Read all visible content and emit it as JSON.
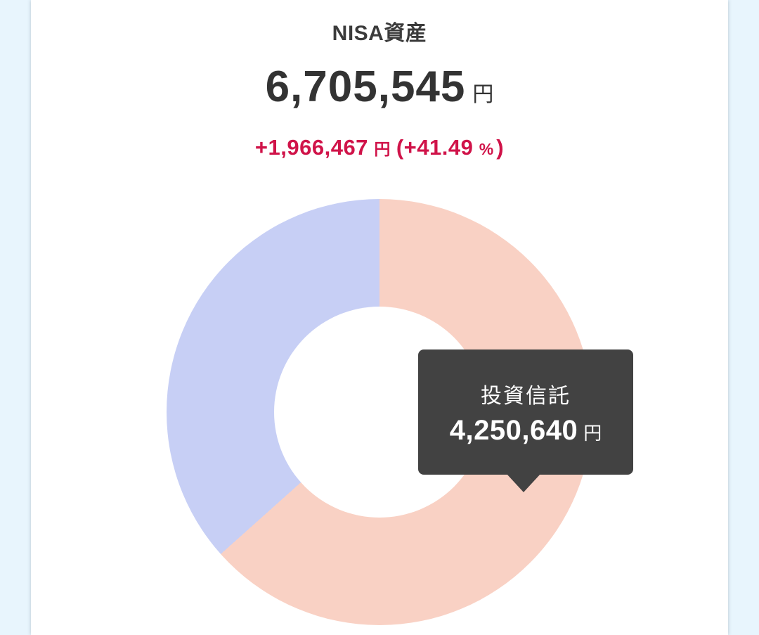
{
  "colors": {
    "page_bg": "#e8f5fd",
    "card_bg": "#ffffff",
    "title_text": "#3b3b3b",
    "amount_text": "#333333",
    "gain_text": "#d01349"
  },
  "header": {
    "title": "NISA資産",
    "total": {
      "amount": "6,705,545",
      "unit": "円"
    },
    "gain": {
      "amount": "+1,966,467",
      "currency_unit": "円",
      "percent_text": "(+41.49",
      "percent_unit": "%",
      "percent_close": ")",
      "color": "#d01349"
    }
  },
  "tooltip": {
    "label": "投資信託",
    "amount": "4,250,640",
    "unit": "円",
    "bg_color": "#424242",
    "text_color": "#ffffff"
  },
  "chart_data": {
    "type": "pie",
    "subtype": "donut",
    "title": "NISA資産",
    "total_value": 6705545,
    "unit": "円",
    "inner_radius_ratio": 0.5,
    "start_angle_deg": 0,
    "direction": "clockwise",
    "legend_position": "none",
    "segments": [
      {
        "label": "投資信託",
        "value": 4250640,
        "percent": 63.4,
        "color": "#f9d1c4"
      },
      {
        "label": "",
        "value": 2454905,
        "percent": 36.6,
        "color": "#c7cff5"
      }
    ]
  }
}
